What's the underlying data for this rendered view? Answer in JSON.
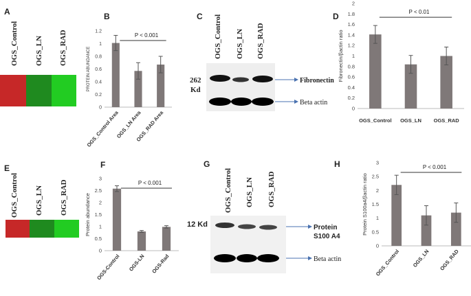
{
  "panel_labels": [
    "A",
    "B",
    "C",
    "D",
    "E",
    "F",
    "G",
    "H"
  ],
  "heatmap_A": {
    "labels": [
      "OGS_Control",
      "OGS_LN",
      "OGS_RAD"
    ],
    "colors": [
      "#c62828",
      "#1f8a1f",
      "#22cc22"
    ]
  },
  "heatmap_E": {
    "labels": [
      "OGS_Control",
      "OGS_LN",
      "OGS_RAD"
    ],
    "colors": [
      "#c62828",
      "#1f8a1f",
      "#22cc22"
    ]
  },
  "blot_C": {
    "lanes": [
      "OGS_Control",
      "OGS_LN",
      "OGS_RAD"
    ],
    "size_label": "262",
    "size_unit": "Kd",
    "target_label": "Fibronectin",
    "control_label": "Beta actin"
  },
  "blot_G": {
    "lanes": [
      "OGS_Control",
      "OGS_LN",
      "OGS_RAD"
    ],
    "size_label": "12 Kd",
    "target_label_1": "Protein",
    "target_label_2": "S100 A4",
    "control_label": "Beta actin"
  },
  "chart_data": [
    {
      "id": "B",
      "type": "bar",
      "categories": [
        "OGS_Control Area",
        "OGS_LN Area",
        "OGS_RAD Area"
      ],
      "values": [
        1.01,
        0.57,
        0.67
      ],
      "errors": [
        0.12,
        0.13,
        0.13
      ],
      "ylabel": "PROTEIN ABUNDANCE",
      "ylim": [
        0,
        1.2
      ],
      "yticks": [
        "0",
        "0.2",
        "0.4",
        "0.6",
        "0.8",
        "1",
        "1.2"
      ],
      "annotation": "P < 0.001",
      "color": "#7f7878"
    },
    {
      "id": "D",
      "type": "bar",
      "categories": [
        "OGS_Control",
        "OGS_LN",
        "OGS_RAD"
      ],
      "values": [
        1.41,
        0.84,
        1.0
      ],
      "errors": [
        0.17,
        0.17,
        0.17
      ],
      "ylabel": "Fibronectin/βactin ratio",
      "ylim": [
        0,
        2
      ],
      "yticks": [
        "0",
        "0.2",
        "0.4",
        "0.6",
        "0.8",
        "1",
        "1.2",
        "1.4",
        "1.6",
        "1.8",
        "2"
      ],
      "annotation": "P < 0.01",
      "color": "#7f7878"
    },
    {
      "id": "F",
      "type": "bar",
      "categories": [
        "OGS-Control",
        "OGS-LN",
        "OGS-Rad"
      ],
      "values": [
        2.58,
        0.8,
        0.99
      ],
      "errors": [
        0.12,
        0.04,
        0.05
      ],
      "ylabel": "Protein abundance",
      "ylim": [
        0,
        3
      ],
      "yticks": [
        "0",
        "0.5",
        "1",
        "1.5",
        "2",
        "2.5",
        "3"
      ],
      "annotation": "P < 0.001",
      "color": "#7f7878"
    },
    {
      "id": "H",
      "type": "bar",
      "categories": [
        "OGS_Control",
        "OGS_LN",
        "OGS_RAD"
      ],
      "values": [
        2.2,
        1.1,
        1.2
      ],
      "errors": [
        0.35,
        0.35,
        0.35
      ],
      "ylabel": "Protein S100a4/βactin ratio",
      "ylim": [
        0,
        3
      ],
      "yticks": [
        "0",
        "0.5",
        "1",
        "1.5",
        "2",
        "2.5",
        "3"
      ],
      "annotation": "P < 0.001",
      "color": "#7f7878"
    }
  ]
}
